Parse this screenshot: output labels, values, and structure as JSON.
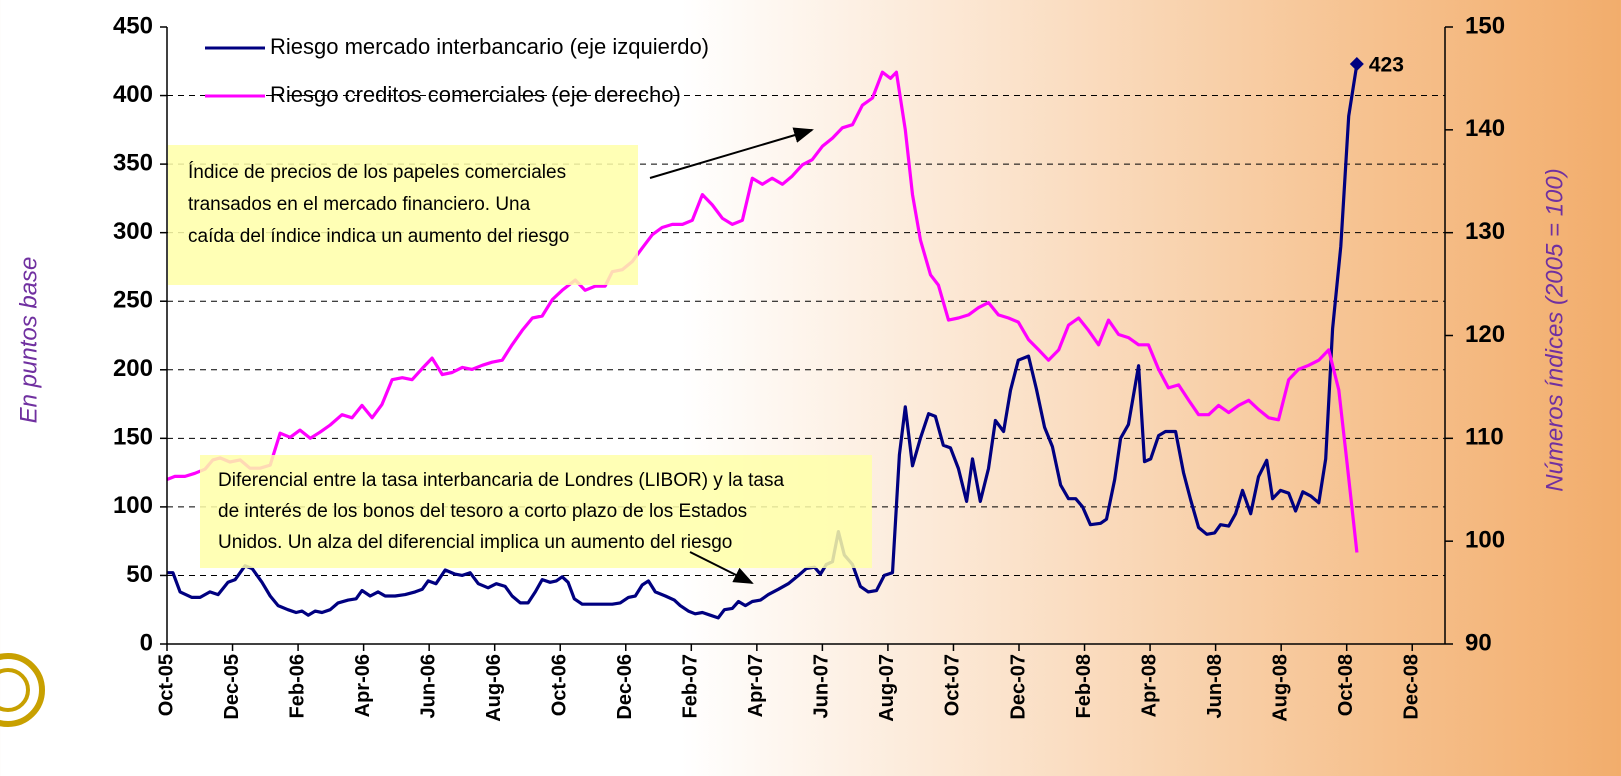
{
  "chart_data": {
    "type": "line",
    "y_label": "En puntos base",
    "y2_label": "Números índices (2005 = 100)",
    "xlim": [
      0,
      39
    ],
    "xticks": [
      {
        "value": 0,
        "label": "Oct-05"
      },
      {
        "value": 2,
        "label": "Dec-05"
      },
      {
        "value": 4,
        "label": "Feb-06"
      },
      {
        "value": 6,
        "label": "Apr-06"
      },
      {
        "value": 8,
        "label": "Jun-06"
      },
      {
        "value": 10,
        "label": "Aug-06"
      },
      {
        "value": 12,
        "label": "Oct-06"
      },
      {
        "value": 14,
        "label": "Dec-06"
      },
      {
        "value": 16,
        "label": "Feb-07"
      },
      {
        "value": 18,
        "label": "Apr-07"
      },
      {
        "value": 20,
        "label": "Jun-07"
      },
      {
        "value": 22,
        "label": "Aug-07"
      },
      {
        "value": 24,
        "label": "Oct-07"
      },
      {
        "value": 26,
        "label": "Dec-07"
      },
      {
        "value": 28,
        "label": "Feb-08"
      },
      {
        "value": 30,
        "label": "Apr-08"
      },
      {
        "value": 32,
        "label": "Jun-08"
      },
      {
        "value": 34,
        "label": "Aug-08"
      },
      {
        "value": 36,
        "label": "Oct-08"
      },
      {
        "value": 38,
        "label": "Dec-08"
      }
    ],
    "ylim": [
      0,
      450
    ],
    "yticks": [
      0,
      50,
      100,
      150,
      200,
      250,
      300,
      350,
      400,
      450
    ],
    "y2lim": [
      90,
      150
    ],
    "y2ticks": [
      90,
      100,
      110,
      120,
      130,
      140,
      150
    ],
    "grid": true,
    "legend": "upper left",
    "series": [
      {
        "name": "Riesgo mercado interbancario (eje izquierdo)",
        "color": "#000080",
        "axis": "y",
        "x": [
          0,
          0.18,
          0.4,
          0.76,
          1.01,
          1.31,
          1.56,
          1.86,
          2.08,
          2.38,
          2.6,
          2.9,
          3.15,
          3.39,
          3.69,
          3.94,
          4.12,
          4.31,
          4.52,
          4.73,
          4.98,
          5.22,
          5.53,
          5.77,
          5.95,
          6.2,
          6.44,
          6.66,
          6.96,
          7.27,
          7.57,
          7.79,
          7.97,
          8.21,
          8.49,
          8.79,
          9.01,
          9.25,
          9.5,
          9.8,
          10.05,
          10.32,
          10.53,
          10.78,
          11.02,
          11.24,
          11.45,
          11.69,
          11.88,
          12.06,
          12.24,
          12.43,
          12.67,
          12.98,
          13.28,
          13.59,
          13.83,
          14.08,
          14.29,
          14.5,
          14.69,
          14.9,
          15.21,
          15.48,
          15.66,
          15.91,
          16.12,
          16.34,
          16.58,
          16.82,
          17.01,
          17.25,
          17.44,
          17.65,
          17.86,
          18.11,
          18.35,
          18.66,
          18.96,
          19.27,
          19.51,
          19.76,
          19.94,
          20.12,
          20.31,
          20.49,
          20.67,
          20.92,
          21.16,
          21.4,
          21.65,
          21.89,
          22.14,
          22.35,
          22.53,
          22.75,
          22.99,
          23.24,
          23.45,
          23.69,
          23.91,
          24.15,
          24.4,
          24.58,
          24.82,
          25.07,
          25.28,
          25.53,
          25.74,
          25.98,
          26.29,
          26.53,
          26.78,
          27.02,
          27.27,
          27.51,
          27.73,
          27.94,
          28.18,
          28.49,
          28.67,
          28.92,
          29.1,
          29.34,
          29.65,
          29.83,
          30.02,
          30.26,
          30.47,
          30.78,
          31.02,
          31.24,
          31.48,
          31.73,
          31.97,
          32.15,
          32.4,
          32.61,
          32.82,
          33.07,
          33.31,
          33.56,
          33.74,
          33.98,
          34.23,
          34.44,
          34.66,
          34.9,
          35.15,
          35.36,
          35.57,
          35.82,
          36.06,
          36.31
        ],
        "values": [
          52,
          52,
          38,
          34,
          34,
          38,
          36,
          45,
          47,
          57,
          55,
          45,
          35,
          28,
          25,
          23,
          24,
          21,
          24,
          23,
          25,
          30,
          32,
          33,
          39,
          35,
          38,
          35,
          35,
          36,
          38,
          40,
          46,
          44,
          54,
          51,
          50,
          52,
          44,
          41,
          44,
          42,
          35,
          30,
          30,
          38,
          47,
          45,
          46,
          49,
          45,
          33,
          29,
          29,
          29,
          29,
          30,
          34,
          35,
          43,
          46,
          38,
          35,
          32,
          28,
          24,
          22,
          23,
          21,
          19,
          25,
          26,
          31,
          28,
          31,
          32,
          36,
          40,
          44,
          50,
          55,
          56,
          51,
          58,
          60,
          82,
          65,
          58,
          42,
          38,
          39,
          50,
          52,
          138,
          173,
          130,
          150,
          168,
          166,
          145,
          143,
          128,
          104,
          135,
          104,
          128,
          163,
          155,
          185,
          207,
          210,
          186,
          158,
          144,
          116,
          106,
          106,
          100,
          87,
          88,
          91,
          120,
          150,
          160,
          203,
          133,
          135,
          152,
          155,
          155,
          125,
          105,
          85,
          80,
          81,
          87,
          86,
          95,
          112,
          95,
          122,
          134,
          106,
          112,
          110,
          97,
          111,
          108,
          103,
          135,
          230,
          290,
          385,
          423
        ]
      },
      {
        "name": "Riesgo creditos comerciales (eje derecho)",
        "color": "#ff00ff",
        "axis": "y2",
        "x": [
          0,
          0.24,
          0.55,
          0.85,
          1.16,
          1.4,
          1.62,
          1.92,
          2.23,
          2.53,
          2.84,
          3.15,
          3.45,
          3.76,
          4.06,
          4.37,
          4.67,
          4.98,
          5.34,
          5.65,
          5.95,
          6.26,
          6.56,
          6.87,
          7.18,
          7.48,
          7.79,
          8.09,
          8.4,
          8.7,
          9.01,
          9.31,
          9.62,
          9.92,
          10.23,
          10.53,
          10.84,
          11.15,
          11.45,
          11.76,
          12.06,
          12.46,
          12.76,
          13.07,
          13.37,
          13.59,
          13.89,
          14.2,
          14.5,
          14.81,
          15.11,
          15.42,
          15.73,
          16.03,
          16.34,
          16.64,
          16.95,
          17.25,
          17.56,
          17.86,
          18.17,
          18.47,
          18.78,
          19.08,
          19.39,
          19.69,
          20.0,
          20.31,
          20.61,
          20.92,
          21.22,
          21.53,
          21.83,
          22.08,
          22.26,
          22.53,
          22.75,
          22.99,
          23.3,
          23.54,
          23.85,
          24.15,
          24.46,
          24.76,
          25.07,
          25.37,
          25.68,
          25.98,
          26.29,
          26.6,
          26.9,
          27.21,
          27.51,
          27.82,
          28.12,
          28.43,
          28.73,
          29.04,
          29.34,
          29.65,
          29.95,
          30.26,
          30.56,
          30.87,
          31.18,
          31.48,
          31.79,
          32.09,
          32.4,
          32.7,
          33.01,
          33.31,
          33.62,
          33.92,
          34.23,
          34.53,
          34.84,
          35.15,
          35.45,
          35.76,
          36.0,
          36.31
        ],
        "values": [
          106,
          106.3,
          106.3,
          106.6,
          107,
          107.9,
          108.1,
          107.7,
          107.9,
          107.1,
          107.1,
          107.4,
          110.5,
          110.1,
          110.8,
          110,
          110.6,
          111.3,
          112.3,
          112,
          113.2,
          112,
          113.3,
          115.7,
          115.9,
          115.7,
          116.8,
          117.8,
          116.2,
          116.4,
          116.9,
          116.7,
          117.1,
          117.4,
          117.6,
          119.1,
          120.5,
          121.7,
          121.9,
          123.5,
          124.4,
          125.4,
          124.4,
          124.8,
          124.8,
          126.2,
          126.4,
          127.2,
          128.5,
          129.8,
          130.5,
          130.8,
          130.8,
          131.2,
          133.7,
          132.7,
          131.4,
          130.8,
          131.2,
          135.3,
          134.7,
          135.3,
          134.7,
          135.5,
          136.6,
          137.1,
          138.4,
          139.2,
          140.2,
          140.5,
          142.4,
          143.1,
          145.6,
          145,
          145.6,
          140,
          133.7,
          129.3,
          125.9,
          124.9,
          121.5,
          121.7,
          122,
          122.7,
          123.2,
          122,
          121.7,
          121.3,
          119.6,
          118.6,
          117.6,
          118.6,
          121,
          121.7,
          120.5,
          119.1,
          121.5,
          120.1,
          119.8,
          119.1,
          119.1,
          116.7,
          114.9,
          115.2,
          113.7,
          112.3,
          112.3,
          113.2,
          112.5,
          113.2,
          113.7,
          112.8,
          112,
          111.8,
          115.7,
          116.7,
          117.1,
          117.6,
          118.6,
          114.7,
          107.9,
          98.9
        ]
      }
    ],
    "annotations": [
      {
        "lines": [
          "Índice de precios de los papeles comerciales",
          "transados en el mercado financiero. Una",
          "caída del índice indica un aumento del riesgo"
        ]
      },
      {
        "lines": [
          "Diferencial entre la tasa interbancaria de Londres (LIBOR) y la tasa",
          "de interés de los bonos del tesoro a corto plazo de los Estados",
          "Unidos. Un alza del diferencial implica un aumento del riesgo"
        ]
      }
    ]
  }
}
